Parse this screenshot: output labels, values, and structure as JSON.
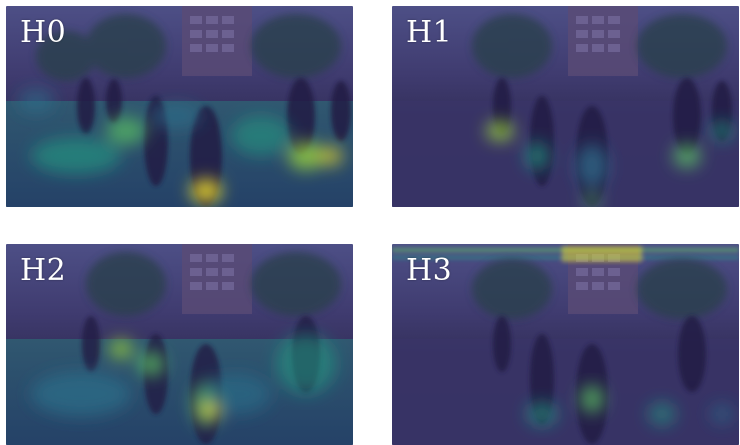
{
  "colors": {
    "base": "#3b2f63",
    "low": "#2c728e",
    "mid": "#21a585",
    "high": "#5ec962",
    "peak": "#fde725"
  },
  "panels": [
    {
      "id": "h0",
      "label": "H0"
    },
    {
      "id": "h1",
      "label": "H1"
    },
    {
      "id": "h2",
      "label": "H2"
    },
    {
      "id": "h3",
      "label": "H3"
    }
  ]
}
